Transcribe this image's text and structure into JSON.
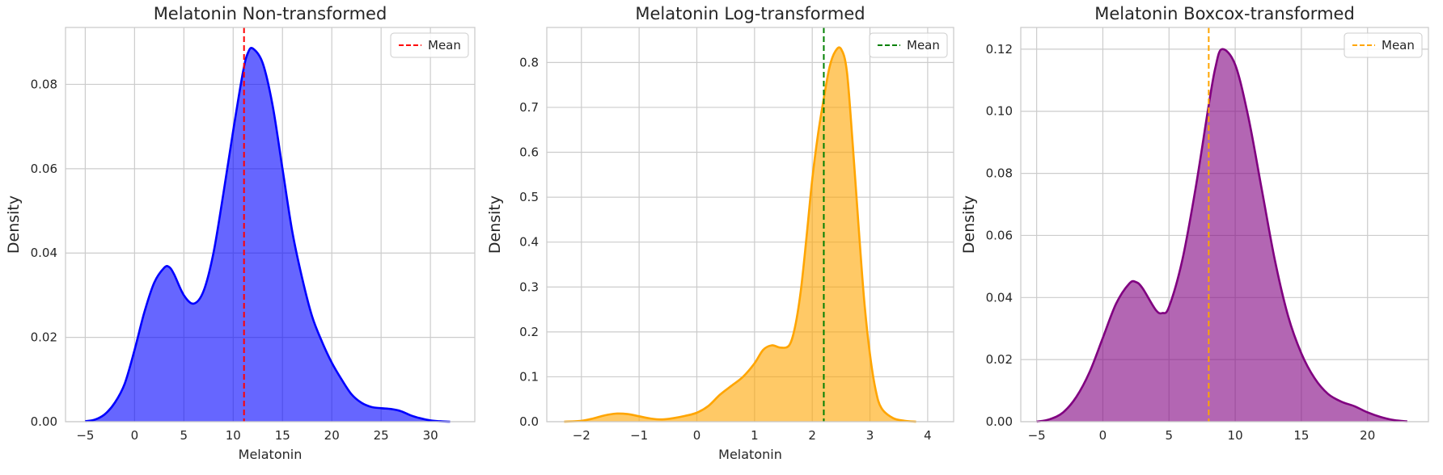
{
  "chart_data": [
    {
      "type": "area",
      "title": "Melatonin Non-transformed",
      "xlabel": "Melatonin",
      "ylabel": "Density",
      "xlim": [
        -7.0,
        34.5
      ],
      "ylim": [
        0,
        0.0935
      ],
      "xticks": [
        -5,
        0,
        5,
        10,
        15,
        20,
        25,
        30
      ],
      "yticks": [
        0.0,
        0.02,
        0.04,
        0.06,
        0.08
      ],
      "ytick_decimals": 2,
      "grid": true,
      "fill_color": "#0000ff",
      "line_color": "#0000ff",
      "mean_line": {
        "x": 11.1,
        "color": "#ff0000",
        "label": "Mean"
      },
      "legend": {
        "position": "top-right",
        "entries": [
          "Mean"
        ]
      },
      "series": [
        {
          "x": [
            -5,
            -4,
            -3,
            -2,
            -1,
            0,
            1,
            2,
            3,
            3.5,
            4,
            5,
            6,
            7,
            8,
            9,
            10,
            11,
            11.5,
            12,
            13,
            14,
            15,
            16,
            17,
            18,
            19,
            20,
            21,
            22,
            23,
            24,
            25,
            26,
            27,
            28,
            29,
            30,
            31,
            32
          ],
          "y": [
            0.0001,
            0.0005,
            0.0018,
            0.0045,
            0.009,
            0.017,
            0.026,
            0.033,
            0.0365,
            0.0367,
            0.035,
            0.03,
            0.028,
            0.031,
            0.04,
            0.054,
            0.069,
            0.083,
            0.0875,
            0.0885,
            0.085,
            0.075,
            0.06,
            0.045,
            0.034,
            0.025,
            0.019,
            0.014,
            0.01,
            0.0065,
            0.0045,
            0.0035,
            0.0032,
            0.003,
            0.0025,
            0.0015,
            0.0008,
            0.0003,
            0.0001,
            0.0
          ]
        }
      ]
    },
    {
      "type": "area",
      "title": "Melatonin Log-transformed",
      "xlabel": "Melatonin",
      "ylabel": "Density",
      "xlim": [
        -2.6,
        4.45
      ],
      "ylim": [
        0,
        0.878
      ],
      "xticks": [
        -2,
        -1,
        0,
        1,
        2,
        3,
        4
      ],
      "yticks": [
        0.0,
        0.1,
        0.2,
        0.3,
        0.4,
        0.5,
        0.6,
        0.7,
        0.8
      ],
      "ytick_decimals": 1,
      "grid": true,
      "fill_color": "#ffa500",
      "line_color": "#ffa500",
      "mean_line": {
        "x": 2.2,
        "color": "#008000",
        "label": "Mean"
      },
      "legend": {
        "position": "top-right",
        "entries": [
          "Mean"
        ]
      },
      "series": [
        {
          "x": [
            -2.3,
            -2.0,
            -1.8,
            -1.6,
            -1.4,
            -1.2,
            -1.0,
            -0.8,
            -0.6,
            -0.4,
            -0.2,
            0.0,
            0.2,
            0.4,
            0.6,
            0.8,
            1.0,
            1.15,
            1.3,
            1.45,
            1.6,
            1.7,
            1.8,
            1.9,
            2.0,
            2.1,
            2.2,
            2.3,
            2.4,
            2.5,
            2.6,
            2.7,
            2.8,
            2.9,
            3.0,
            3.1,
            3.2,
            3.4,
            3.6,
            3.8
          ],
          "y": [
            0.0,
            0.002,
            0.007,
            0.014,
            0.018,
            0.017,
            0.012,
            0.007,
            0.005,
            0.008,
            0.013,
            0.02,
            0.035,
            0.06,
            0.08,
            0.1,
            0.13,
            0.16,
            0.17,
            0.165,
            0.17,
            0.21,
            0.29,
            0.41,
            0.54,
            0.64,
            0.72,
            0.79,
            0.825,
            0.83,
            0.78,
            0.62,
            0.44,
            0.27,
            0.15,
            0.07,
            0.03,
            0.008,
            0.002,
            0.0
          ]
        }
      ]
    },
    {
      "type": "area",
      "title": "Melatonin Boxcox-transformed",
      "xlabel": "",
      "ylabel": "Density",
      "xlim": [
        -6.2,
        24.6
      ],
      "ylim": [
        0,
        0.127
      ],
      "xticks": [
        -5,
        0,
        5,
        10,
        15,
        20
      ],
      "yticks": [
        0.0,
        0.02,
        0.04,
        0.06,
        0.08,
        0.1,
        0.12
      ],
      "ytick_decimals": 2,
      "grid": true,
      "fill_color": "#800080",
      "line_color": "#800080",
      "mean_line": {
        "x": 8.0,
        "color": "#ffa500",
        "label": "Mean"
      },
      "legend": {
        "position": "top-right",
        "entries": [
          "Mean"
        ]
      },
      "series": [
        {
          "x": [
            -5,
            -4,
            -3,
            -2,
            -1,
            0,
            1,
            2,
            2.5,
            3,
            4,
            4.5,
            5,
            6,
            7,
            8,
            8.5,
            9,
            10,
            11,
            12,
            13,
            14,
            15,
            16,
            17,
            18,
            19,
            20,
            21,
            22,
            23
          ],
          "y": [
            0.0,
            0.0008,
            0.003,
            0.008,
            0.016,
            0.027,
            0.038,
            0.0445,
            0.045,
            0.043,
            0.036,
            0.035,
            0.037,
            0.052,
            0.075,
            0.102,
            0.114,
            0.12,
            0.115,
            0.098,
            0.075,
            0.052,
            0.034,
            0.022,
            0.014,
            0.009,
            0.0065,
            0.005,
            0.003,
            0.0015,
            0.0005,
            0.0001
          ]
        }
      ]
    }
  ]
}
